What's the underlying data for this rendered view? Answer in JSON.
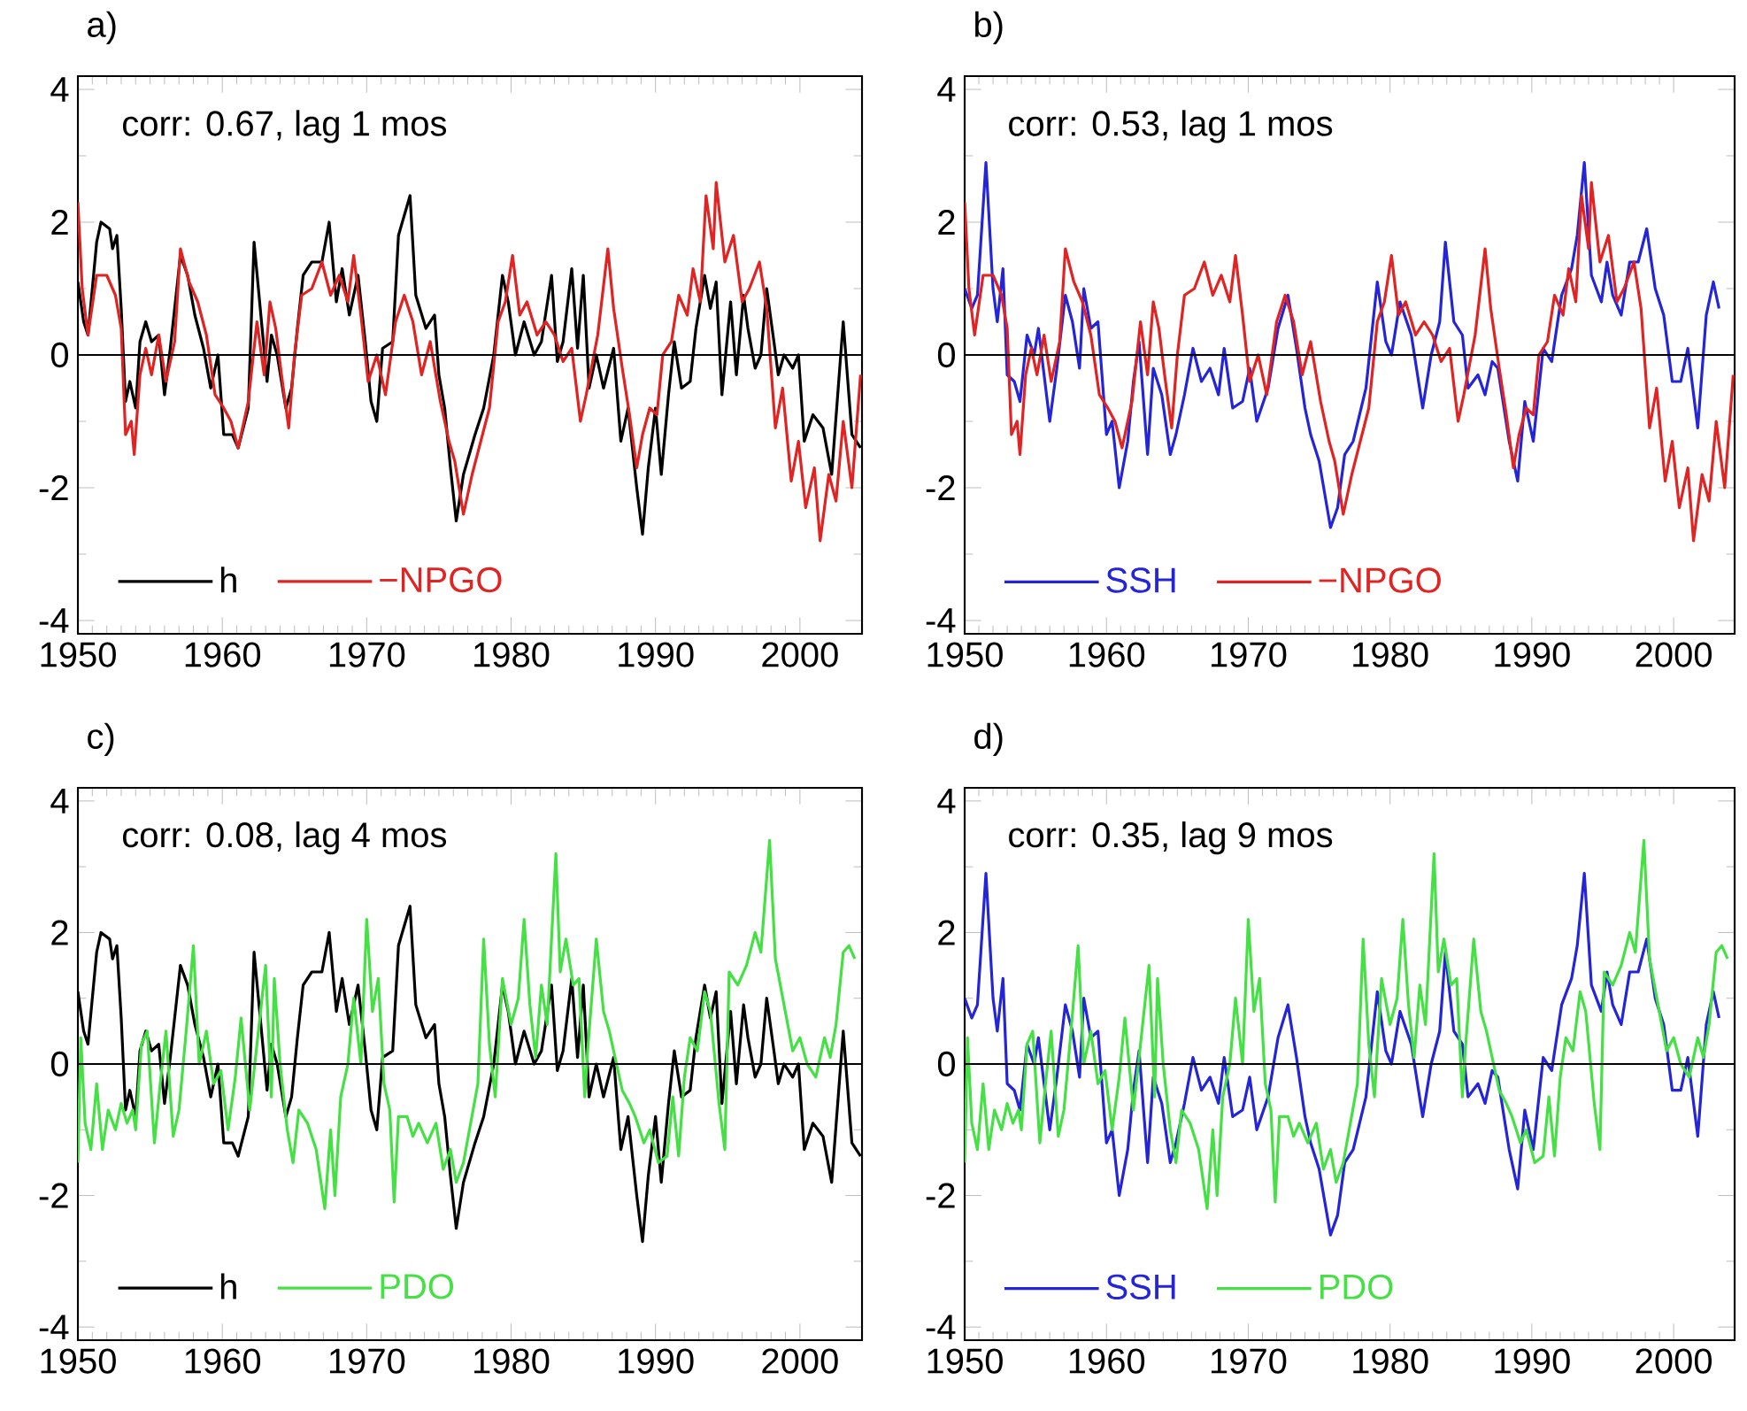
{
  "chart_data": [
    {
      "type": "line",
      "title": "a)",
      "annotations": [
        "corr: 0.67, lag 1 mos"
      ],
      "xlim": [
        1950,
        2004.3
      ],
      "xticks": [
        1950,
        1960,
        1970,
        1980,
        1990,
        2000
      ],
      "ylim": [
        -4.2,
        4.2
      ],
      "yticks": [
        -4,
        -2,
        0,
        2,
        4
      ],
      "legend": "bottom left",
      "ref_lines": [
        {
          "axis": "y",
          "value": 0,
          "color": "#000000"
        }
      ],
      "series": [
        {
          "name": "h",
          "color": "#000000",
          "x": [
            1950.0,
            1950.4,
            1950.7,
            1951.3,
            1951.6,
            1952.2,
            1952.4,
            1952.7,
            1953.0,
            1953.3,
            1953.6,
            1954.0,
            1954.3,
            1954.7,
            1955.1,
            1955.6,
            1956.0,
            1956.4,
            1957.1,
            1957.6,
            1958.1,
            1958.7,
            1959.2,
            1959.7,
            1960.1,
            1960.7,
            1961.1,
            1961.8,
            1962.2,
            1962.8,
            1963.1,
            1963.4,
            1963.8,
            1964.4,
            1964.8,
            1965.2,
            1965.6,
            1966.2,
            1966.9,
            1967.4,
            1967.9,
            1968.3,
            1968.8,
            1969.4,
            1969.9,
            1970.3,
            1970.7,
            1971.1,
            1971.8,
            1972.2,
            1973.0,
            1973.4,
            1974.1,
            1974.7,
            1975.0,
            1975.4,
            1975.8,
            1976.2,
            1976.7,
            1977.5,
            1978.1,
            1978.8,
            1979.4,
            1979.8,
            1980.3,
            1980.9,
            1981.6,
            1982.1,
            1982.8,
            1983.2,
            1983.6,
            1984.2,
            1984.6,
            1985.0,
            1985.4,
            1985.9,
            1986.4,
            1987.1,
            1987.6,
            1988.1,
            1988.7,
            1989.1,
            1989.5,
            1990.0,
            1990.4,
            1990.9,
            1991.3,
            1991.8,
            1992.4,
            1992.8,
            1993.4,
            1993.8,
            1994.2,
            1994.6,
            1995.2,
            1995.6,
            1996.1,
            1996.4,
            1996.9,
            1997.3,
            1997.7,
            1998.2,
            1998.5,
            1998.9,
            1999.5,
            1999.9,
            2000.3,
            2000.9,
            2001.6,
            2002.2,
            2003.0,
            2003.6,
            2004.2
          ],
          "values": [
            1.1,
            0.5,
            0.3,
            1.7,
            2.0,
            1.9,
            1.6,
            1.8,
            0.7,
            -0.7,
            -0.4,
            -0.8,
            0.2,
            0.5,
            0.2,
            0.3,
            -0.6,
            0.1,
            1.5,
            1.2,
            0.6,
            0.1,
            -0.5,
            0.0,
            -1.2,
            -1.2,
            -1.4,
            -0.8,
            1.7,
            0.3,
            -0.4,
            0.3,
            0.0,
            -0.8,
            -0.5,
            0.4,
            1.2,
            1.4,
            1.4,
            2.0,
            0.8,
            1.3,
            0.6,
            1.2,
            0.2,
            -0.7,
            -1.0,
            0.1,
            0.2,
            1.8,
            2.4,
            0.9,
            0.4,
            0.6,
            -0.3,
            -0.8,
            -1.7,
            -2.5,
            -1.8,
            -1.2,
            -0.8,
            0.0,
            1.2,
            0.8,
            0.0,
            0.5,
            0.0,
            0.2,
            1.2,
            -0.1,
            0.2,
            1.3,
            0.1,
            1.2,
            -0.5,
            0.0,
            -0.5,
            0.1,
            -1.3,
            -0.8,
            -2.0,
            -2.7,
            -1.7,
            -0.8,
            -1.8,
            -0.6,
            0.2,
            -0.5,
            -0.4,
            0.4,
            1.2,
            0.7,
            1.1,
            -0.6,
            0.8,
            -0.3,
            0.9,
            0.4,
            -0.2,
            0.0,
            1.0,
            0.2,
            -0.3,
            0.0,
            -0.2,
            0.0,
            -1.3,
            -0.9,
            -1.1,
            -1.8,
            0.5,
            -1.2,
            -1.4
          ]
        },
        {
          "name": "−NPGO",
          "color": "#e02424",
          "x": [
            1950.0,
            1950.3,
            1950.7,
            1951.3,
            1952.0,
            1952.6,
            1953.0,
            1953.3,
            1953.7,
            1953.9,
            1954.3,
            1954.7,
            1955.1,
            1955.6,
            1956.1,
            1956.7,
            1957.1,
            1957.7,
            1958.3,
            1958.9,
            1959.5,
            1960.1,
            1960.6,
            1961.1,
            1961.8,
            1962.4,
            1962.9,
            1963.3,
            1963.7,
            1964.1,
            1964.6,
            1965.0,
            1965.5,
            1966.2,
            1966.9,
            1967.5,
            1968.1,
            1968.7,
            1969.1,
            1969.6,
            1970.1,
            1970.7,
            1971.3,
            1972.0,
            1972.6,
            1973.2,
            1973.8,
            1974.4,
            1975.1,
            1975.7,
            1976.1,
            1976.7,
            1977.3,
            1977.9,
            1978.5,
            1979.1,
            1979.6,
            1980.1,
            1980.6,
            1981.1,
            1981.8,
            1982.4,
            1983.0,
            1983.6,
            1984.2,
            1984.8,
            1985.2,
            1986.0,
            1986.7,
            1987.1,
            1987.7,
            1988.2,
            1988.7,
            1989.1,
            1989.6,
            1990.1,
            1990.5,
            1991.1,
            1991.6,
            1992.2,
            1992.6,
            1993.1,
            1993.5,
            1994.0,
            1994.2,
            1994.8,
            1995.4,
            1996.0,
            1996.5,
            1997.2,
            1997.7,
            1998.3,
            1998.8,
            1999.4,
            1999.9,
            2000.4,
            2001.0,
            2001.4,
            2002.0,
            2002.5,
            2003.0,
            2003.6,
            2004.2
          ],
          "values": [
            2.3,
            1.0,
            0.3,
            1.2,
            1.2,
            0.9,
            0.4,
            -1.2,
            -1.0,
            -1.5,
            -0.3,
            0.1,
            -0.3,
            0.3,
            -0.4,
            0.2,
            1.6,
            1.1,
            0.8,
            0.3,
            -0.6,
            -0.8,
            -1.0,
            -1.4,
            -0.7,
            0.5,
            -0.3,
            0.8,
            0.4,
            -0.3,
            -1.1,
            0.0,
            0.9,
            1.0,
            1.4,
            0.9,
            1.2,
            0.8,
            1.5,
            0.6,
            -0.4,
            0.0,
            -0.6,
            0.5,
            0.9,
            0.5,
            -0.3,
            0.2,
            -0.7,
            -1.3,
            -1.6,
            -2.4,
            -1.8,
            -1.3,
            -0.8,
            0.5,
            0.8,
            1.5,
            0.6,
            0.8,
            0.3,
            0.5,
            0.3,
            -0.1,
            0.1,
            -1.0,
            -0.6,
            0.3,
            1.6,
            0.7,
            -0.2,
            -0.9,
            -1.7,
            -1.2,
            -0.8,
            -0.9,
            0.0,
            0.2,
            0.9,
            0.6,
            1.3,
            0.8,
            2.4,
            1.6,
            2.6,
            1.4,
            1.8,
            0.8,
            1.0,
            1.4,
            0.7,
            -1.1,
            -0.5,
            -1.9,
            -1.3,
            -2.3,
            -1.7,
            -2.8,
            -1.8,
            -2.2,
            -1.0,
            -2.0,
            -0.3
          ]
        }
      ]
    },
    {
      "type": "line",
      "title": "b)",
      "annotations": [
        "corr: 0.53, lag 1 mos"
      ],
      "xlim": [
        1950,
        2004.3
      ],
      "xticks": [
        1950,
        1960,
        1970,
        1980,
        1990,
        2000
      ],
      "ylim": [
        -4.2,
        4.2
      ],
      "yticks": [
        -4,
        -2,
        0,
        2,
        4
      ],
      "legend": "bottom left",
      "ref_lines": [
        {
          "axis": "y",
          "value": 0,
          "color": "#000000"
        }
      ],
      "series": [
        {
          "name": "SSH",
          "color": "#2424d8",
          "x": [
            1950.0,
            1950.5,
            1950.9,
            1951.5,
            1952.0,
            1952.3,
            1952.7,
            1953.0,
            1953.5,
            1953.9,
            1954.4,
            1954.9,
            1955.2,
            1955.6,
            1956.0,
            1956.5,
            1957.1,
            1957.6,
            1958.1,
            1958.4,
            1958.9,
            1959.4,
            1960.0,
            1960.4,
            1960.9,
            1961.5,
            1961.9,
            1962.3,
            1962.9,
            1963.3,
            1963.9,
            1964.5,
            1964.9,
            1965.5,
            1966.1,
            1966.7,
            1967.3,
            1967.9,
            1968.3,
            1968.9,
            1969.6,
            1970.1,
            1970.6,
            1971.4,
            1972.1,
            1972.8,
            1973.4,
            1974.0,
            1974.4,
            1975.0,
            1975.8,
            1976.3,
            1976.8,
            1977.4,
            1978.3,
            1979.1,
            1979.7,
            1980.1,
            1980.7,
            1981.5,
            1982.3,
            1982.9,
            1983.5,
            1983.9,
            1984.5,
            1985.1,
            1985.5,
            1986.2,
            1986.7,
            1987.2,
            1987.6,
            1988.4,
            1989.0,
            1989.5,
            1990.1,
            1990.8,
            1991.4,
            1992.1,
            1992.8,
            1993.2,
            1993.7,
            1994.2,
            1994.9,
            1995.3,
            1995.7,
            1996.3,
            1996.9,
            1997.5,
            1998.1,
            1998.7,
            1999.3,
            1999.9,
            2000.5,
            2001.0,
            2001.7,
            2002.3,
            2002.8,
            2003.2
          ],
          "values": [
            1.0,
            0.7,
            0.9,
            2.9,
            1.0,
            0.5,
            1.3,
            -0.3,
            -0.4,
            -0.7,
            0.3,
            0.0,
            0.4,
            -0.3,
            -1.0,
            -0.2,
            0.9,
            0.5,
            -0.2,
            1.0,
            0.4,
            0.5,
            -1.2,
            -1.0,
            -2.0,
            -1.3,
            -0.4,
            0.2,
            -1.5,
            -0.2,
            -0.6,
            -1.5,
            -1.2,
            -0.6,
            0.1,
            -0.4,
            -0.2,
            -0.6,
            0.1,
            -0.8,
            -0.7,
            -0.2,
            -1.0,
            -0.5,
            0.4,
            0.9,
            0.1,
            -0.8,
            -1.2,
            -1.6,
            -2.6,
            -2.3,
            -1.5,
            -1.3,
            -0.5,
            1.1,
            0.2,
            0.0,
            0.8,
            0.3,
            -0.8,
            0.0,
            0.5,
            1.7,
            0.5,
            0.3,
            -0.5,
            -0.3,
            -0.6,
            -0.1,
            -0.2,
            -1.3,
            -1.9,
            -0.7,
            -1.3,
            0.1,
            -0.1,
            0.9,
            1.3,
            1.8,
            2.9,
            1.2,
            0.8,
            1.4,
            0.9,
            0.6,
            1.4,
            1.4,
            1.9,
            1.0,
            0.6,
            -0.4,
            -0.4,
            0.1,
            -1.1,
            0.6,
            1.1,
            0.7
          ]
        },
        {
          "name": "−NPGO",
          "color": "#e02424",
          "x": [
            1950.0,
            1950.3,
            1950.7,
            1951.3,
            1952.0,
            1952.6,
            1953.0,
            1953.3,
            1953.7,
            1953.9,
            1954.3,
            1954.7,
            1955.1,
            1955.6,
            1956.1,
            1956.7,
            1957.1,
            1957.7,
            1958.3,
            1958.9,
            1959.5,
            1960.1,
            1960.6,
            1961.1,
            1961.8,
            1962.4,
            1962.9,
            1963.3,
            1963.7,
            1964.1,
            1964.6,
            1965.0,
            1965.5,
            1966.2,
            1966.9,
            1967.5,
            1968.1,
            1968.7,
            1969.1,
            1969.6,
            1970.1,
            1970.7,
            1971.3,
            1972.0,
            1972.6,
            1973.2,
            1973.8,
            1974.4,
            1975.1,
            1975.7,
            1976.1,
            1976.7,
            1977.3,
            1977.9,
            1978.5,
            1979.1,
            1979.6,
            1980.1,
            1980.6,
            1981.1,
            1981.8,
            1982.4,
            1983.0,
            1983.6,
            1984.2,
            1984.8,
            1985.2,
            1986.0,
            1986.7,
            1987.1,
            1987.7,
            1988.2,
            1988.7,
            1989.1,
            1989.6,
            1990.1,
            1990.5,
            1991.1,
            1991.6,
            1992.2,
            1992.6,
            1993.1,
            1993.5,
            1994.0,
            1994.2,
            1994.8,
            1995.4,
            1996.0,
            1996.5,
            1997.2,
            1997.7,
            1998.3,
            1998.8,
            1999.4,
            1999.9,
            2000.4,
            2001.0,
            2001.4,
            2002.0,
            2002.5,
            2003.0,
            2003.6,
            2004.2
          ],
          "values": [
            2.3,
            1.0,
            0.3,
            1.2,
            1.2,
            0.9,
            0.4,
            -1.2,
            -1.0,
            -1.5,
            -0.3,
            0.1,
            -0.3,
            0.3,
            -0.4,
            0.2,
            1.6,
            1.1,
            0.8,
            0.3,
            -0.6,
            -0.8,
            -1.0,
            -1.4,
            -0.7,
            0.5,
            -0.3,
            0.8,
            0.4,
            -0.3,
            -1.1,
            0.0,
            0.9,
            1.0,
            1.4,
            0.9,
            1.2,
            0.8,
            1.5,
            0.6,
            -0.4,
            0.0,
            -0.6,
            0.5,
            0.9,
            0.5,
            -0.3,
            0.2,
            -0.7,
            -1.3,
            -1.6,
            -2.4,
            -1.8,
            -1.3,
            -0.8,
            0.5,
            0.8,
            1.5,
            0.6,
            0.8,
            0.3,
            0.5,
            0.3,
            -0.1,
            0.1,
            -1.0,
            -0.6,
            0.3,
            1.6,
            0.7,
            -0.2,
            -0.9,
            -1.7,
            -1.2,
            -0.8,
            -0.9,
            0.0,
            0.2,
            0.9,
            0.6,
            1.3,
            0.8,
            2.4,
            1.6,
            2.6,
            1.4,
            1.8,
            0.8,
            1.0,
            1.4,
            0.7,
            -1.1,
            -0.5,
            -1.9,
            -1.3,
            -2.3,
            -1.7,
            -2.8,
            -1.8,
            -2.2,
            -1.0,
            -2.0,
            -0.3
          ]
        }
      ]
    },
    {
      "type": "line",
      "title": "c)",
      "annotations": [
        "corr: 0.08, lag 4 mos"
      ],
      "xlim": [
        1950,
        2004.3
      ],
      "xticks": [
        1950,
        1960,
        1970,
        1980,
        1990,
        2000
      ],
      "ylim": [
        -4.2,
        4.2
      ],
      "yticks": [
        -4,
        -2,
        0,
        2,
        4
      ],
      "legend": "bottom left",
      "ref_lines": [
        {
          "axis": "y",
          "value": 0,
          "color": "#000000"
        }
      ],
      "series": [
        {
          "name": "h",
          "color": "#000000",
          "x": [
            1950.0,
            1950.4,
            1950.7,
            1951.3,
            1951.6,
            1952.2,
            1952.4,
            1952.7,
            1953.0,
            1953.3,
            1953.6,
            1954.0,
            1954.3,
            1954.7,
            1955.1,
            1955.6,
            1956.0,
            1956.4,
            1957.1,
            1957.6,
            1958.1,
            1958.7,
            1959.2,
            1959.7,
            1960.1,
            1960.7,
            1961.1,
            1961.8,
            1962.2,
            1962.8,
            1963.1,
            1963.4,
            1963.8,
            1964.4,
            1964.8,
            1965.2,
            1965.6,
            1966.2,
            1966.9,
            1967.4,
            1967.9,
            1968.3,
            1968.8,
            1969.4,
            1969.9,
            1970.3,
            1970.7,
            1971.1,
            1971.8,
            1972.2,
            1973.0,
            1973.4,
            1974.1,
            1974.7,
            1975.0,
            1975.4,
            1975.8,
            1976.2,
            1976.7,
            1977.5,
            1978.1,
            1978.8,
            1979.4,
            1979.8,
            1980.3,
            1980.9,
            1981.6,
            1982.1,
            1982.8,
            1983.2,
            1983.6,
            1984.2,
            1984.6,
            1985.0,
            1985.4,
            1985.9,
            1986.4,
            1987.1,
            1987.6,
            1988.1,
            1988.7,
            1989.1,
            1989.5,
            1990.0,
            1990.4,
            1990.9,
            1991.3,
            1991.8,
            1992.4,
            1992.8,
            1993.4,
            1993.8,
            1994.2,
            1994.6,
            1995.2,
            1995.6,
            1996.1,
            1996.4,
            1996.9,
            1997.3,
            1997.7,
            1998.2,
            1998.5,
            1998.9,
            1999.5,
            1999.9,
            2000.3,
            2000.9,
            2001.6,
            2002.2,
            2003.0,
            2003.6,
            2004.2
          ],
          "values": [
            1.1,
            0.5,
            0.3,
            1.7,
            2.0,
            1.9,
            1.6,
            1.8,
            0.7,
            -0.7,
            -0.4,
            -0.8,
            0.2,
            0.5,
            0.2,
            0.3,
            -0.6,
            0.1,
            1.5,
            1.2,
            0.6,
            0.1,
            -0.5,
            0.0,
            -1.2,
            -1.2,
            -1.4,
            -0.8,
            1.7,
            0.3,
            -0.4,
            0.3,
            0.0,
            -0.8,
            -0.5,
            0.4,
            1.2,
            1.4,
            1.4,
            2.0,
            0.8,
            1.3,
            0.6,
            1.2,
            0.2,
            -0.7,
            -1.0,
            0.1,
            0.2,
            1.8,
            2.4,
            0.9,
            0.4,
            0.6,
            -0.3,
            -0.8,
            -1.7,
            -2.5,
            -1.8,
            -1.2,
            -0.8,
            0.0,
            1.2,
            0.8,
            0.0,
            0.5,
            0.0,
            0.2,
            1.2,
            -0.1,
            0.2,
            1.3,
            0.1,
            1.2,
            -0.5,
            0.0,
            -0.5,
            0.1,
            -1.3,
            -0.8,
            -2.0,
            -2.7,
            -1.7,
            -0.8,
            -1.8,
            -0.6,
            0.2,
            -0.5,
            -0.4,
            0.4,
            1.2,
            0.7,
            1.1,
            -0.6,
            0.8,
            -0.3,
            0.9,
            0.4,
            -0.2,
            0.0,
            1.0,
            0.2,
            -0.3,
            0.0,
            -0.2,
            0.0,
            -1.3,
            -0.9,
            -1.1,
            -1.8,
            0.5,
            -1.2,
            -1.4
          ]
        },
        {
          "name": "PDO",
          "color": "#44e044",
          "x": [
            1950.0,
            1950.2,
            1950.5,
            1950.9,
            1951.3,
            1951.7,
            1952.1,
            1952.6,
            1953.0,
            1953.4,
            1953.8,
            1954.0,
            1954.4,
            1954.8,
            1955.3,
            1955.7,
            1956.1,
            1956.6,
            1957.0,
            1957.5,
            1958.0,
            1958.4,
            1958.9,
            1959.4,
            1959.9,
            1960.4,
            1960.9,
            1961.3,
            1961.9,
            1962.5,
            1963.0,
            1963.4,
            1963.6,
            1964.0,
            1964.5,
            1964.9,
            1965.3,
            1965.9,
            1966.5,
            1967.1,
            1967.5,
            1967.8,
            1968.2,
            1968.7,
            1969.1,
            1969.6,
            1970.0,
            1970.4,
            1970.8,
            1971.2,
            1971.6,
            1971.9,
            1972.2,
            1972.8,
            1973.2,
            1973.6,
            1974.2,
            1974.8,
            1975.3,
            1975.8,
            1976.2,
            1976.7,
            1977.2,
            1977.7,
            1978.1,
            1978.5,
            1978.9,
            1979.4,
            1980.0,
            1980.5,
            1980.9,
            1981.3,
            1981.7,
            1982.1,
            1982.5,
            1983.1,
            1983.4,
            1983.8,
            1984.3,
            1984.7,
            1985.1,
            1985.3,
            1985.9,
            1986.4,
            1986.8,
            1987.2,
            1987.7,
            1988.2,
            1988.6,
            1989.2,
            1989.6,
            1990.2,
            1990.8,
            1991.2,
            1991.6,
            1992.0,
            1992.4,
            1992.9,
            1993.4,
            1993.8,
            1994.4,
            1994.8,
            1995.1,
            1995.7,
            1996.3,
            1996.9,
            1997.3,
            1997.9,
            1998.3,
            1998.9,
            1999.5,
            2000.0,
            2000.5,
            2001.1,
            2001.7,
            2002.1,
            2002.5,
            2003.0,
            2003.4,
            2003.8
          ],
          "values": [
            -1.5,
            0.4,
            -0.9,
            -1.3,
            -0.3,
            -1.3,
            -0.7,
            -1.0,
            -0.6,
            -0.9,
            -0.7,
            -1.0,
            0.3,
            0.5,
            -1.2,
            -0.3,
            0.5,
            -1.1,
            -0.7,
            0.5,
            1.8,
            0.0,
            0.5,
            -0.3,
            -0.1,
            -1.0,
            -0.2,
            0.7,
            -0.7,
            0.5,
            1.5,
            -0.5,
            1.3,
            0.0,
            -1.0,
            -1.5,
            -0.7,
            -0.9,
            -1.3,
            -2.2,
            -1.0,
            -2.0,
            -0.5,
            0.0,
            1.0,
            0.0,
            2.2,
            0.8,
            1.3,
            -0.3,
            -0.7,
            -2.1,
            -0.8,
            -0.8,
            -1.1,
            -0.9,
            -1.2,
            -0.9,
            -1.6,
            -1.3,
            -1.8,
            -1.5,
            -0.9,
            -0.3,
            1.9,
            0.3,
            -0.5,
            1.3,
            0.6,
            1.0,
            2.2,
            0.9,
            0.1,
            1.2,
            0.6,
            3.2,
            1.4,
            1.9,
            1.2,
            1.3,
            -0.5,
            0.2,
            1.9,
            0.8,
            0.5,
            0.1,
            -0.4,
            -0.6,
            -0.8,
            -1.2,
            -1.0,
            -1.5,
            -1.4,
            -0.5,
            -1.4,
            -0.2,
            0.4,
            0.2,
            1.1,
            0.8,
            -0.6,
            -1.3,
            1.4,
            1.2,
            1.5,
            2.0,
            1.7,
            3.4,
            1.6,
            0.9,
            0.2,
            0.4,
            0.0,
            -0.2,
            0.4,
            0.1,
            0.6,
            1.7,
            1.8,
            1.6
          ]
        }
      ]
    },
    {
      "type": "line",
      "title": "d)",
      "annotations": [
        "corr: 0.35, lag 9 mos"
      ],
      "xlim": [
        1950,
        2004.3
      ],
      "xticks": [
        1950,
        1960,
        1970,
        1980,
        1990,
        2000
      ],
      "ylim": [
        -4.2,
        4.2
      ],
      "yticks": [
        -4,
        -2,
        0,
        2,
        4
      ],
      "legend": "bottom left",
      "ref_lines": [
        {
          "axis": "y",
          "value": 0,
          "color": "#000000"
        }
      ],
      "series": [
        {
          "name": "SSH",
          "color": "#2424d8",
          "x": [
            1950.0,
            1950.5,
            1950.9,
            1951.5,
            1952.0,
            1952.3,
            1952.7,
            1953.0,
            1953.5,
            1953.9,
            1954.4,
            1954.9,
            1955.2,
            1955.6,
            1956.0,
            1956.5,
            1957.1,
            1957.6,
            1958.1,
            1958.4,
            1958.9,
            1959.4,
            1960.0,
            1960.4,
            1960.9,
            1961.5,
            1961.9,
            1962.3,
            1962.9,
            1963.3,
            1963.9,
            1964.5,
            1964.9,
            1965.5,
            1966.1,
            1966.7,
            1967.3,
            1967.9,
            1968.3,
            1968.9,
            1969.6,
            1970.1,
            1970.6,
            1971.4,
            1972.1,
            1972.8,
            1973.4,
            1974.0,
            1974.4,
            1975.0,
            1975.8,
            1976.3,
            1976.8,
            1977.4,
            1978.3,
            1979.1,
            1979.7,
            1980.1,
            1980.7,
            1981.5,
            1982.3,
            1982.9,
            1983.5,
            1983.9,
            1984.5,
            1985.1,
            1985.5,
            1986.2,
            1986.7,
            1987.2,
            1987.6,
            1988.4,
            1989.0,
            1989.5,
            1990.1,
            1990.8,
            1991.4,
            1992.1,
            1992.8,
            1993.2,
            1993.7,
            1994.2,
            1994.9,
            1995.3,
            1995.7,
            1996.3,
            1996.9,
            1997.5,
            1998.1,
            1998.7,
            1999.3,
            1999.9,
            2000.5,
            2001.0,
            2001.7,
            2002.3,
            2002.8,
            2003.2
          ],
          "values": [
            1.0,
            0.7,
            0.9,
            2.9,
            1.0,
            0.5,
            1.3,
            -0.3,
            -0.4,
            -0.7,
            0.3,
            0.0,
            0.4,
            -0.3,
            -1.0,
            -0.2,
            0.9,
            0.5,
            -0.2,
            1.0,
            0.4,
            0.5,
            -1.2,
            -1.0,
            -2.0,
            -1.3,
            -0.4,
            0.2,
            -1.5,
            -0.2,
            -0.6,
            -1.5,
            -1.2,
            -0.6,
            0.1,
            -0.4,
            -0.2,
            -0.6,
            0.1,
            -0.8,
            -0.7,
            -0.2,
            -1.0,
            -0.5,
            0.4,
            0.9,
            0.1,
            -0.8,
            -1.2,
            -1.6,
            -2.6,
            -2.3,
            -1.5,
            -1.3,
            -0.5,
            1.1,
            0.2,
            0.0,
            0.8,
            0.3,
            -0.8,
            0.0,
            0.5,
            1.7,
            0.5,
            0.3,
            -0.5,
            -0.3,
            -0.6,
            -0.1,
            -0.2,
            -1.3,
            -1.9,
            -0.7,
            -1.3,
            0.1,
            -0.1,
            0.9,
            1.3,
            1.8,
            2.9,
            1.2,
            0.8,
            1.4,
            0.9,
            0.6,
            1.4,
            1.4,
            1.9,
            1.0,
            0.6,
            -0.4,
            -0.4,
            0.1,
            -1.1,
            0.6,
            1.1,
            0.7
          ]
        },
        {
          "name": "PDO",
          "color": "#44e044",
          "x": [
            1950.0,
            1950.2,
            1950.5,
            1950.9,
            1951.3,
            1951.7,
            1952.1,
            1952.6,
            1953.0,
            1953.4,
            1953.8,
            1954.0,
            1954.4,
            1954.8,
            1955.3,
            1955.7,
            1956.1,
            1956.6,
            1957.0,
            1957.5,
            1958.0,
            1958.4,
            1958.9,
            1959.4,
            1959.9,
            1960.4,
            1960.9,
            1961.3,
            1961.9,
            1962.5,
            1963.0,
            1963.4,
            1963.6,
            1964.0,
            1964.5,
            1964.9,
            1965.3,
            1965.9,
            1966.5,
            1967.1,
            1967.5,
            1967.8,
            1968.2,
            1968.7,
            1969.1,
            1969.6,
            1970.0,
            1970.4,
            1970.8,
            1971.2,
            1971.6,
            1971.9,
            1972.2,
            1972.8,
            1973.2,
            1973.6,
            1974.2,
            1974.8,
            1975.3,
            1975.8,
            1976.2,
            1976.7,
            1977.2,
            1977.7,
            1978.1,
            1978.5,
            1978.9,
            1979.4,
            1980.0,
            1980.5,
            1980.9,
            1981.3,
            1981.7,
            1982.1,
            1982.5,
            1983.1,
            1983.4,
            1983.8,
            1984.3,
            1984.7,
            1985.1,
            1985.3,
            1985.9,
            1986.4,
            1986.8,
            1987.2,
            1987.7,
            1988.2,
            1988.6,
            1989.2,
            1989.6,
            1990.2,
            1990.8,
            1991.2,
            1991.6,
            1992.0,
            1992.4,
            1992.9,
            1993.4,
            1993.8,
            1994.4,
            1994.8,
            1995.1,
            1995.7,
            1996.3,
            1996.9,
            1997.3,
            1997.9,
            1998.3,
            1998.9,
            1999.5,
            2000.0,
            2000.5,
            2001.1,
            2001.7,
            2002.1,
            2002.5,
            2003.0,
            2003.4,
            2003.8
          ],
          "values": [
            -1.5,
            0.4,
            -0.9,
            -1.3,
            -0.3,
            -1.3,
            -0.7,
            -1.0,
            -0.6,
            -0.9,
            -0.7,
            -1.0,
            0.3,
            0.5,
            -1.2,
            -0.3,
            0.5,
            -1.1,
            -0.7,
            0.5,
            1.8,
            0.0,
            0.5,
            -0.3,
            -0.1,
            -1.0,
            -0.2,
            0.7,
            -0.7,
            0.5,
            1.5,
            -0.5,
            1.3,
            0.0,
            -1.0,
            -1.5,
            -0.7,
            -0.9,
            -1.3,
            -2.2,
            -1.0,
            -2.0,
            -0.5,
            0.0,
            1.0,
            0.0,
            2.2,
            0.8,
            1.3,
            -0.3,
            -0.7,
            -2.1,
            -0.8,
            -0.8,
            -1.1,
            -0.9,
            -1.2,
            -0.9,
            -1.6,
            -1.3,
            -1.8,
            -1.5,
            -0.9,
            -0.3,
            1.9,
            0.3,
            -0.5,
            1.3,
            0.6,
            1.0,
            2.2,
            0.9,
            0.1,
            1.2,
            0.6,
            3.2,
            1.4,
            1.9,
            1.2,
            1.3,
            -0.5,
            0.2,
            1.9,
            0.8,
            0.5,
            0.1,
            -0.4,
            -0.6,
            -0.8,
            -1.2,
            -1.0,
            -1.5,
            -1.4,
            -0.5,
            -1.4,
            -0.2,
            0.4,
            0.2,
            1.1,
            0.8,
            -0.6,
            -1.3,
            1.4,
            1.2,
            1.5,
            2.0,
            1.7,
            3.4,
            1.6,
            0.9,
            0.2,
            0.4,
            0.0,
            -0.2,
            0.4,
            0.1,
            0.6,
            1.7,
            1.8,
            1.6
          ]
        }
      ]
    }
  ]
}
